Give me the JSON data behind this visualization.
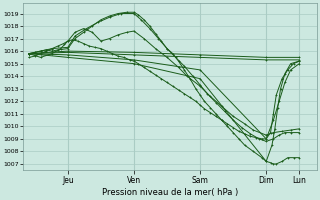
{
  "title": "Pression niveau de la mer( hPa )",
  "bg_color": "#cce8e0",
  "grid_color": "#aaccc4",
  "line_color": "#1a5c1a",
  "ylim": [
    1006.5,
    1019.8
  ],
  "yticks": [
    1007,
    1008,
    1009,
    1010,
    1011,
    1012,
    1013,
    1014,
    1015,
    1016,
    1017,
    1018,
    1019
  ],
  "xlim": [
    0.0,
    1.02
  ],
  "day_labels": [
    "Jeu",
    "Ven",
    "Sam",
    "Dim",
    "Lun"
  ],
  "day_positions": [
    0.155,
    0.385,
    0.615,
    0.845,
    0.96
  ],
  "vline_positions": [
    0.155,
    0.385,
    0.615,
    0.845,
    0.96
  ],
  "lines": [
    {
      "x": [
        0.02,
        0.04,
        0.06,
        0.08,
        0.1,
        0.12,
        0.155,
        0.18,
        0.21,
        0.24,
        0.27,
        0.3,
        0.33,
        0.36,
        0.385,
        0.4,
        0.42,
        0.44,
        0.46,
        0.48,
        0.5,
        0.52,
        0.54,
        0.56,
        0.58,
        0.6,
        0.615,
        0.63,
        0.65,
        0.67,
        0.69,
        0.71,
        0.73,
        0.75,
        0.77,
        0.8,
        0.83,
        0.845,
        0.86,
        0.87,
        0.88,
        0.9,
        0.92,
        0.94,
        0.96
      ],
      "y": [
        1015.8,
        1015.9,
        1016.0,
        1016.1,
        1016.0,
        1016.1,
        1016.2,
        1017.0,
        1017.5,
        1018.0,
        1018.5,
        1018.8,
        1019.0,
        1019.1,
        1019.1,
        1018.9,
        1018.5,
        1018.0,
        1017.4,
        1016.8,
        1016.2,
        1015.8,
        1015.2,
        1014.5,
        1013.8,
        1013.0,
        1012.5,
        1012.0,
        1011.5,
        1011.0,
        1010.5,
        1010.0,
        1009.5,
        1009.0,
        1008.5,
        1008.0,
        1007.5,
        1007.2,
        1007.1,
        1007.0,
        1007.0,
        1007.2,
        1007.5,
        1007.5,
        1007.5
      ],
      "marker": "+"
    },
    {
      "x": [
        0.02,
        0.06,
        0.1,
        0.155,
        0.18,
        0.22,
        0.26,
        0.3,
        0.34,
        0.385,
        0.41,
        0.44,
        0.47,
        0.5,
        0.53,
        0.56,
        0.59,
        0.615,
        0.64,
        0.67,
        0.7,
        0.73,
        0.76,
        0.79,
        0.82,
        0.845,
        0.87,
        0.89,
        0.91,
        0.93,
        0.96
      ],
      "y": [
        1015.8,
        1016.0,
        1016.2,
        1016.3,
        1017.2,
        1017.8,
        1018.3,
        1018.7,
        1019.0,
        1019.0,
        1018.5,
        1017.8,
        1017.0,
        1016.2,
        1015.5,
        1014.8,
        1014.0,
        1013.3,
        1012.6,
        1011.9,
        1011.2,
        1010.5,
        1009.9,
        1009.4,
        1009.0,
        1008.8,
        1009.0,
        1009.3,
        1009.5,
        1009.5,
        1009.5
      ],
      "marker": "+"
    },
    {
      "x": [
        0.02,
        0.06,
        0.1,
        0.13,
        0.155,
        0.18,
        0.21,
        0.24,
        0.27,
        0.3,
        0.33,
        0.36,
        0.385,
        0.42,
        0.46,
        0.5,
        0.54,
        0.57,
        0.615,
        0.65,
        0.69,
        0.73,
        0.77,
        0.8,
        0.845,
        0.87,
        0.9,
        0.93,
        0.96
      ],
      "y": [
        1015.8,
        1015.5,
        1015.8,
        1016.2,
        1016.8,
        1017.5,
        1017.8,
        1017.5,
        1016.8,
        1017.0,
        1017.3,
        1017.5,
        1017.6,
        1017.0,
        1016.2,
        1015.5,
        1014.7,
        1014.0,
        1013.2,
        1012.4,
        1011.6,
        1010.8,
        1010.2,
        1009.7,
        1009.3,
        1009.5,
        1009.6,
        1009.7,
        1009.8
      ],
      "marker": "+"
    },
    {
      "x": [
        0.02,
        0.155,
        0.385,
        0.615,
        0.845,
        0.96
      ],
      "y": [
        1015.8,
        1016.0,
        1015.9,
        1015.7,
        1015.5,
        1015.5
      ],
      "marker": "+"
    },
    {
      "x": [
        0.02,
        0.155,
        0.385,
        0.615,
        0.845,
        0.96
      ],
      "y": [
        1015.8,
        1015.9,
        1015.7,
        1015.5,
        1015.3,
        1015.3
      ],
      "marker": "+"
    },
    {
      "x": [
        0.02,
        0.155,
        0.385,
        0.615,
        0.845,
        0.87,
        0.89,
        0.91,
        0.93,
        0.96
      ],
      "y": [
        1015.8,
        1015.7,
        1015.3,
        1014.5,
        1009.0,
        1010.5,
        1012.0,
        1013.5,
        1014.5,
        1015.0
      ],
      "marker": "+"
    },
    {
      "x": [
        0.02,
        0.155,
        0.385,
        0.615,
        0.845,
        0.865,
        0.875,
        0.885,
        0.895,
        0.91,
        0.93,
        0.96
      ],
      "y": [
        1015.8,
        1015.5,
        1015.0,
        1013.8,
        1007.2,
        1008.5,
        1009.8,
        1011.5,
        1013.0,
        1014.2,
        1015.0,
        1015.2
      ],
      "marker": "+"
    },
    {
      "x": [
        0.02,
        0.04,
        0.06,
        0.08,
        0.1,
        0.12,
        0.14,
        0.155,
        0.17,
        0.19,
        0.21,
        0.23,
        0.25,
        0.27,
        0.29,
        0.31,
        0.33,
        0.35,
        0.37,
        0.385,
        0.4,
        0.42,
        0.44,
        0.46,
        0.48,
        0.5,
        0.52,
        0.54,
        0.56,
        0.58,
        0.6,
        0.615,
        0.63,
        0.65,
        0.67,
        0.69,
        0.71,
        0.73,
        0.75,
        0.77,
        0.79,
        0.81,
        0.83,
        0.845,
        0.86,
        0.87,
        0.88,
        0.9,
        0.92,
        0.94,
        0.96
      ],
      "y": [
        1015.5,
        1015.6,
        1015.8,
        1016.0,
        1016.2,
        1016.4,
        1016.6,
        1016.8,
        1016.9,
        1016.8,
        1016.6,
        1016.4,
        1016.3,
        1016.2,
        1016.0,
        1015.8,
        1015.6,
        1015.5,
        1015.3,
        1015.2,
        1015.0,
        1014.7,
        1014.4,
        1014.1,
        1013.8,
        1013.5,
        1013.2,
        1012.9,
        1012.6,
        1012.3,
        1012.0,
        1011.7,
        1011.4,
        1011.1,
        1010.8,
        1010.5,
        1010.2,
        1009.9,
        1009.6,
        1009.4,
        1009.2,
        1009.1,
        1009.0,
        1009.0,
        1009.5,
        1011.0,
        1012.5,
        1013.8,
        1014.5,
        1015.0,
        1015.2
      ],
      "marker": "+"
    }
  ]
}
